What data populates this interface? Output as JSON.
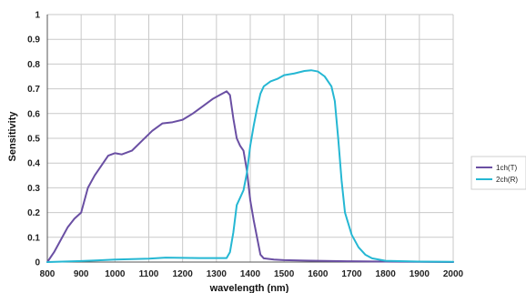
{
  "chart_data": {
    "type": "line",
    "title": "",
    "xlabel": "wavelength (nm)",
    "ylabel": "Sensitivity",
    "xlim": [
      800,
      2000
    ],
    "ylim": [
      0,
      1
    ],
    "x_ticks": [
      800,
      900,
      1000,
      1100,
      1200,
      1300,
      1400,
      1500,
      1600,
      1700,
      1800,
      1900,
      2000
    ],
    "y_ticks": [
      0,
      0.1,
      0.2,
      0.3,
      0.4,
      0.5,
      0.6,
      0.7,
      0.8,
      0.9,
      1
    ],
    "grid": true,
    "legend_position": "right",
    "series": [
      {
        "name": "1ch(T)",
        "color": "#6a4fa3",
        "points": [
          [
            800,
            0.0
          ],
          [
            820,
            0.04
          ],
          [
            840,
            0.09
          ],
          [
            860,
            0.14
          ],
          [
            880,
            0.175
          ],
          [
            900,
            0.2
          ],
          [
            920,
            0.3
          ],
          [
            940,
            0.35
          ],
          [
            960,
            0.39
          ],
          [
            980,
            0.43
          ],
          [
            1000,
            0.44
          ],
          [
            1020,
            0.435
          ],
          [
            1050,
            0.45
          ],
          [
            1080,
            0.49
          ],
          [
            1110,
            0.53
          ],
          [
            1140,
            0.56
          ],
          [
            1170,
            0.565
          ],
          [
            1200,
            0.575
          ],
          [
            1230,
            0.6
          ],
          [
            1260,
            0.63
          ],
          [
            1290,
            0.66
          ],
          [
            1310,
            0.675
          ],
          [
            1330,
            0.69
          ],
          [
            1340,
            0.675
          ],
          [
            1350,
            0.58
          ],
          [
            1360,
            0.5
          ],
          [
            1370,
            0.47
          ],
          [
            1380,
            0.45
          ],
          [
            1390,
            0.37
          ],
          [
            1400,
            0.25
          ],
          [
            1410,
            0.17
          ],
          [
            1420,
            0.1
          ],
          [
            1430,
            0.03
          ],
          [
            1440,
            0.015
          ],
          [
            1470,
            0.01
          ],
          [
            1500,
            0.008
          ],
          [
            1560,
            0.006
          ],
          [
            1600,
            0.005
          ],
          [
            1700,
            0.003
          ],
          [
            1800,
            0.002
          ],
          [
            1900,
            0.001
          ],
          [
            2000,
            0.0
          ]
        ]
      },
      {
        "name": "2ch(R)",
        "color": "#25b7d3",
        "points": [
          [
            800,
            0.0
          ],
          [
            900,
            0.004
          ],
          [
            950,
            0.007
          ],
          [
            1000,
            0.01
          ],
          [
            1050,
            0.012
          ],
          [
            1100,
            0.014
          ],
          [
            1150,
            0.018
          ],
          [
            1200,
            0.017
          ],
          [
            1250,
            0.016
          ],
          [
            1300,
            0.016
          ],
          [
            1330,
            0.016
          ],
          [
            1340,
            0.04
          ],
          [
            1350,
            0.12
          ],
          [
            1360,
            0.23
          ],
          [
            1370,
            0.26
          ],
          [
            1380,
            0.29
          ],
          [
            1390,
            0.36
          ],
          [
            1400,
            0.47
          ],
          [
            1410,
            0.55
          ],
          [
            1420,
            0.62
          ],
          [
            1430,
            0.68
          ],
          [
            1440,
            0.71
          ],
          [
            1460,
            0.73
          ],
          [
            1480,
            0.74
          ],
          [
            1500,
            0.755
          ],
          [
            1530,
            0.762
          ],
          [
            1560,
            0.772
          ],
          [
            1580,
            0.775
          ],
          [
            1600,
            0.77
          ],
          [
            1620,
            0.75
          ],
          [
            1640,
            0.71
          ],
          [
            1650,
            0.65
          ],
          [
            1660,
            0.5
          ],
          [
            1670,
            0.33
          ],
          [
            1680,
            0.2
          ],
          [
            1700,
            0.11
          ],
          [
            1720,
            0.06
          ],
          [
            1740,
            0.03
          ],
          [
            1760,
            0.015
          ],
          [
            1800,
            0.005
          ],
          [
            1900,
            0.002
          ],
          [
            2000,
            0.001
          ]
        ]
      }
    ]
  }
}
